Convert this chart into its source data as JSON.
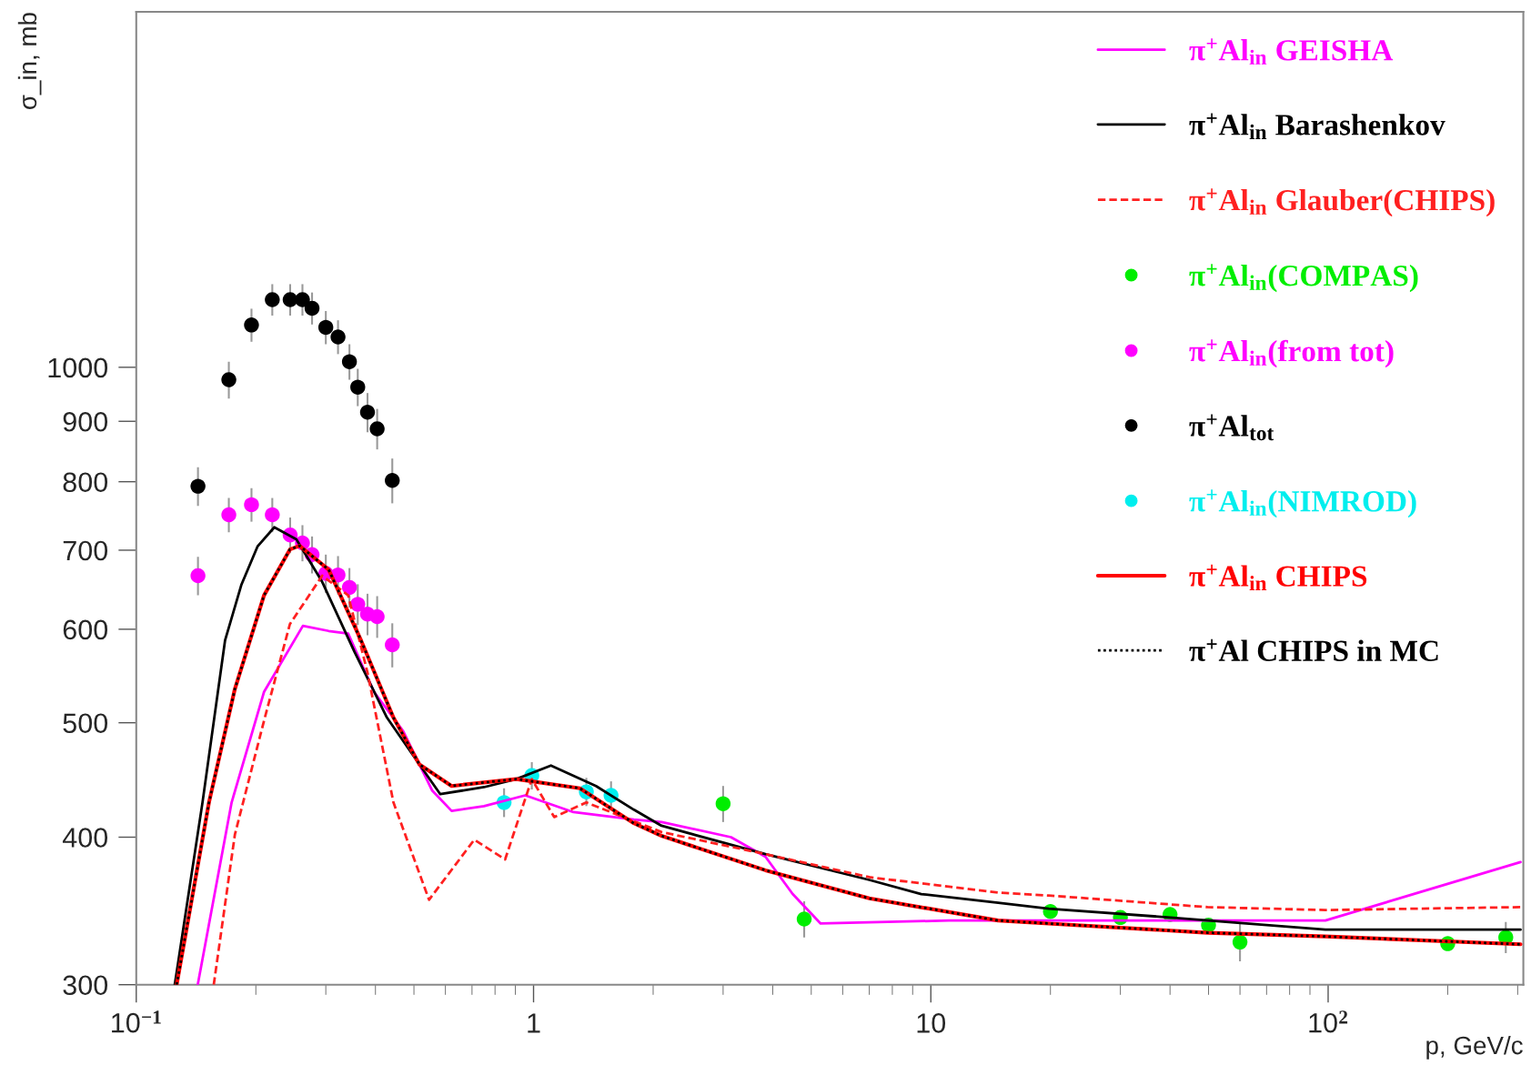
{
  "chart_data": {
    "type": "line",
    "ylabel": "σ_in, mb",
    "xlabel": "p, GeV/c",
    "log": "xy",
    "xlim": [
      0.1,
      310
    ],
    "ylim": [
      300,
      2000
    ],
    "xticks": [
      {
        "value": 0.1,
        "label": "10$^{−1}$"
      },
      1,
      10,
      {
        "value": 100,
        "label": "10$^{2}$"
      }
    ],
    "yticks": [
      300,
      400,
      500,
      600,
      700,
      800,
      900,
      1000
    ],
    "grid": false,
    "legend": "top right",
    "series": [
      {
        "name": "π$^{+}$Al$_{in}$ GEISHA",
        "color": "#ff00ff",
        "line_style": "solid",
        "marker": "none",
        "x": [
          0.1428,
          0.1738,
          0.2097,
          0.2627,
          0.305,
          0.3415,
          0.3966,
          0.4697,
          0.5559,
          0.622,
          0.7505,
          0.953,
          1.26,
          1.789,
          2.1,
          3.14,
          3.835,
          4.49,
          5.28,
          11.1,
          98.4,
          305
        ],
        "values": [
          300,
          428,
          531,
          604,
          598,
          595,
          531,
          492,
          438,
          421,
          425,
          434,
          420,
          414,
          412,
          400,
          385,
          358,
          338,
          340,
          340,
          381
        ]
      },
      {
        "name": "π$^{+}$Al$_{in}$ Barashenkov",
        "color": "#000000",
        "line_style": "solid",
        "marker": "none",
        "x": [
          0.125,
          0.1468,
          0.1673,
          0.1838,
          0.2019,
          0.2226,
          0.2529,
          0.2938,
          0.3544,
          0.4276,
          0.516,
          0.5824,
          0.7505,
          0.905,
          1.106,
          1.436,
          1.789,
          2.1,
          3.835,
          7.0,
          9.46,
          14.77,
          19.8,
          40.1,
          98.4,
          305
        ],
        "values": [
          300,
          428,
          587,
          654,
          705,
          732,
          715,
          658,
          574,
          505,
          461,
          435,
          441,
          448,
          460,
          442,
          422,
          409,
          387,
          368,
          358,
          352,
          348,
          342,
          334,
          334
        ]
      },
      {
        "name": "π$^{+}$Al$_{in}$ Glauber(CHIPS)",
        "color": "#ff2020",
        "line_style": "dashed",
        "marker": "none",
        "x": [
          0.1567,
          0.1771,
          0.2097,
          0.2436,
          0.2938,
          0.3415,
          0.3822,
          0.444,
          0.5457,
          0.7093,
          0.848,
          0.99,
          1.127,
          1.358,
          2.1,
          3.835,
          7.0,
          14.77,
          19.8,
          49.7,
          98.4,
          305
        ],
        "values": [
          300,
          402,
          502,
          606,
          666,
          641,
          551,
          428,
          354,
          398,
          383,
          448,
          416,
          428,
          404,
          387,
          370,
          359,
          357,
          349,
          347,
          349
        ]
      },
      {
        "name": "π$^{+}$Al$_{in}$(COMPAS)",
        "type": "scatter",
        "color": "#00ee00",
        "marker": "circle",
        "x": [
          3,
          4.8,
          20,
          30,
          40,
          50,
          60,
          200,
          280
        ],
        "values": [
          427,
          341,
          346,
          342,
          344,
          337,
          326,
          325,
          329
        ],
        "errors": [
          15,
          12,
          null,
          null,
          null,
          null,
          12,
          null,
          10
        ]
      },
      {
        "name": "π$^{+}$Al$_{in}$(from tot)",
        "type": "scatter",
        "color": "#ff00ff",
        "marker": "circle",
        "x": [
          0.143,
          0.171,
          0.195,
          0.22,
          0.244,
          0.262,
          0.277,
          0.3,
          0.322,
          0.344,
          0.361,
          0.382,
          0.404,
          0.441
        ],
        "values": [
          666,
          750,
          765,
          750,
          721,
          710,
          694,
          669,
          667,
          651,
          630,
          618,
          615,
          582
        ],
        "errors": [
          25,
          25,
          25,
          25,
          25,
          25,
          25,
          25,
          25,
          25,
          25,
          25,
          25,
          25
        ]
      },
      {
        "name": "π$^{+}$Al$_{tot}$",
        "type": "scatter",
        "color": "#000000",
        "marker": "circle",
        "x": [
          0.143,
          0.171,
          0.195,
          0.22,
          0.244,
          0.262,
          0.277,
          0.3,
          0.322,
          0.344,
          0.361,
          0.382,
          0.404,
          0.441
        ],
        "values": [
          793,
          976,
          1086,
          1141,
          1141,
          1141,
          1122,
          1081,
          1061,
          1011,
          962,
          916,
          887,
          802
        ],
        "errors": [
          30,
          35,
          35,
          35,
          35,
          35,
          35,
          35,
          35,
          35,
          35,
          35,
          35,
          35
        ]
      },
      {
        "name": "π$^{+}$Al$_{in}$(NIMROD)",
        "type": "scatter",
        "color": "#00eeee",
        "marker": "circle",
        "x": [
          0.843,
          0.99,
          1.358,
          1.567
        ],
        "values": [
          428,
          451,
          437,
          434
        ],
        "errors": [
          12,
          12,
          12,
          12
        ]
      },
      {
        "name": "π$^{+}$Al$_{in}$ CHIPS",
        "color": "#ff0000",
        "line_style": "solid",
        "marker": "none",
        "x": [
          0.1264,
          0.1524,
          0.1771,
          0.2097,
          0.2436,
          0.2577,
          0.305,
          0.368,
          0.444,
          0.516,
          0.622,
          0.905,
          1.308,
          1.789,
          2.1,
          3.835,
          7.0,
          14.77,
          19.8,
          49.7,
          98.4,
          305
        ],
        "values": [
          300,
          428,
          534,
          641,
          701,
          706,
          674,
          587,
          505,
          461,
          442,
          448,
          440,
          411,
          401,
          375,
          355,
          340,
          338,
          332,
          329.6,
          324.6
        ]
      },
      {
        "name": "π$^{+}$Al CHIPS in MC",
        "color": "#000000",
        "line_style": "dotted",
        "marker": "none",
        "x": [
          0.1264,
          0.1524,
          0.1771,
          0.2097,
          0.2436,
          0.2577,
          0.305,
          0.368,
          0.444,
          0.516,
          0.622,
          0.905,
          1.308,
          1.789,
          2.1,
          3.835,
          7.0,
          14.77,
          19.8,
          49.7,
          98.4,
          305
        ],
        "values": [
          300,
          428,
          534,
          641,
          701,
          706,
          674,
          587,
          505,
          461,
          442,
          448,
          440,
          411,
          401,
          375,
          355,
          340,
          338,
          332,
          329.6,
          324.6
        ]
      }
    ]
  }
}
